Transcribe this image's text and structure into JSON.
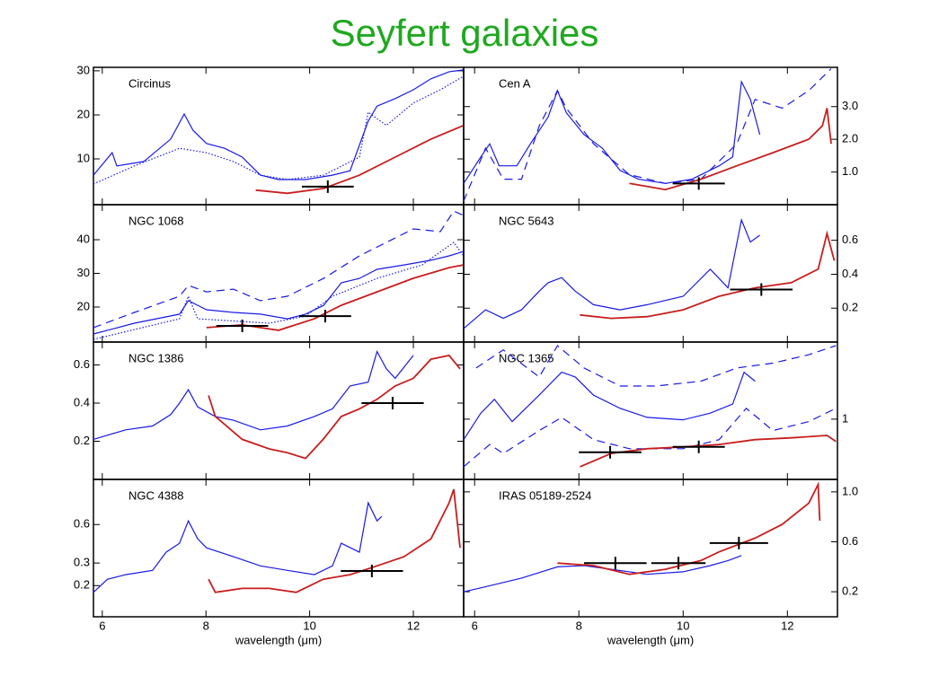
{
  "title": "Seyfert galaxies",
  "chart_data": [
    {
      "type": "line",
      "title": "Circinus",
      "xlim": [
        5.83,
        12.97
      ],
      "xticks": [
        6,
        8,
        10,
        12
      ],
      "ylim": [
        -0.4,
        30.8
      ],
      "yticks": [
        10,
        20,
        30
      ],
      "yaxis_side": "left",
      "series": [
        {
          "color": "#1a1ae6",
          "style": "solid",
          "x": [
            5.83,
            6.19,
            6.28,
            6.8,
            7.32,
            7.58,
            7.75,
            8.01,
            8.36,
            8.7,
            9.05,
            9.4,
            9.92,
            10.44,
            10.78,
            11.13,
            11.3,
            11.65,
            12.0,
            12.34,
            12.69,
            12.97
          ],
          "values": [
            6.3,
            11.4,
            8.4,
            9.4,
            14.5,
            20.2,
            16.5,
            13.5,
            12.4,
            10.4,
            6.3,
            5.3,
            5.3,
            6.3,
            7.3,
            18.6,
            22,
            23.7,
            25.7,
            28.2,
            29.8,
            30.2
          ]
        },
        {
          "color": "#1a1ae6",
          "style": "dotted",
          "x": [
            5.83,
            6.62,
            7.49,
            8.01,
            8.53,
            9.05,
            9.57,
            10.27,
            10.96,
            11.13,
            11.48,
            12.0,
            12.52,
            12.97
          ],
          "values": [
            4.3,
            8.4,
            12.4,
            11.4,
            9.4,
            6.3,
            5.3,
            6.3,
            10.4,
            20.6,
            17.6,
            22.7,
            25.7,
            28.8
          ]
        },
        {
          "color": "#c81e1e",
          "style": "solid",
          "x": [
            8.96,
            9.57,
            10.27,
            10.96,
            11.65,
            12.34,
            12.97
          ],
          "values": [
            2.9,
            2.2,
            3.3,
            6.3,
            10.4,
            14.5,
            17.6
          ]
        },
        {
          "color": "#000000",
          "style": "photometry",
          "x": [
            10.35
          ],
          "values": [
            3.7
          ],
          "xerr": [
            0.5
          ]
        }
      ]
    },
    {
      "type": "line",
      "title": "Cen A",
      "xlim": [
        5.79,
        12.96
      ],
      "xticks": [
        6,
        8,
        10,
        12
      ],
      "ylim": [
        0,
        4.2
      ],
      "yticks": [
        {
          "value": 1,
          "label": "1.0"
        },
        {
          "value": 2,
          "label": "2.0"
        },
        {
          "value": 3,
          "label": "3.0"
        }
      ],
      "yaxis_side": "right",
      "series": [
        {
          "color": "#1a1ae6",
          "style": "solid",
          "x": [
            5.79,
            6.12,
            6.29,
            6.47,
            6.81,
            7.07,
            7.41,
            7.59,
            7.76,
            8.1,
            8.45,
            8.79,
            9.14,
            9.66,
            10.17,
            10.69,
            10.95,
            11.12,
            11.29,
            11.47
          ],
          "values": [
            0.65,
            1.46,
            1.86,
            1.19,
            1.19,
            1.86,
            2.68,
            3.49,
            2.81,
            2.14,
            1.73,
            1.05,
            0.78,
            0.65,
            0.78,
            1.19,
            1.46,
            3.76,
            3.22,
            2.14
          ]
        },
        {
          "color": "#1a1ae6",
          "style": "dashed",
          "x": [
            5.79,
            6.21,
            6.55,
            6.9,
            7.24,
            7.59,
            7.76,
            8.28,
            8.97,
            9.66,
            10.34,
            11.03,
            11.38,
            11.9,
            12.41,
            12.84
          ],
          "values": [
            0.11,
            1.73,
            0.78,
            0.78,
            2.41,
            3.49,
            2.95,
            1.86,
            0.92,
            0.65,
            0.78,
            1.86,
            3.22,
            2.95,
            3.49,
            4.16
          ]
        },
        {
          "color": "#c81e1e",
          "style": "solid",
          "x": [
            8.97,
            9.66,
            10.34,
            11.03,
            11.72,
            12.41,
            12.67,
            12.76,
            12.84
          ],
          "values": [
            0.65,
            0.46,
            0.78,
            1.19,
            1.59,
            2.0,
            2.41,
            2.95,
            1.86
          ]
        },
        {
          "color": "#000000",
          "style": "photometry",
          "x": [
            10.3
          ],
          "values": [
            0.65
          ],
          "xerr": [
            0.5
          ]
        }
      ]
    },
    {
      "type": "line",
      "title": "NGC 1068",
      "xlim": [
        5.83,
        12.97
      ],
      "xticks": [
        6,
        8,
        10,
        12
      ],
      "ylim": [
        9.6,
        50.4
      ],
      "yticks": [
        20,
        30,
        40
      ],
      "yaxis_side": "left",
      "series": [
        {
          "color": "#1a1ae6",
          "style": "solid",
          "x": [
            5.83,
            6.62,
            7.49,
            7.66,
            8.01,
            8.53,
            9.05,
            9.57,
            9.92,
            10.27,
            10.61,
            10.96,
            11.3,
            11.82,
            12.34,
            12.69,
            12.97
          ],
          "values": [
            12,
            15.2,
            17.9,
            21.9,
            19.2,
            18.4,
            17.9,
            16.5,
            17.9,
            20.5,
            27.2,
            28.5,
            31.2,
            32.5,
            33.9,
            35.2,
            36.5
          ]
        },
        {
          "color": "#1a1ae6",
          "style": "dashed",
          "x": [
            5.83,
            6.62,
            7.49,
            7.66,
            8.01,
            8.53,
            9.05,
            9.57,
            10.27,
            10.96,
            11.48,
            12.0,
            12.52,
            12.78,
            12.97
          ],
          "values": [
            13.9,
            18.4,
            23.2,
            26.4,
            24.5,
            25.3,
            21.9,
            23.2,
            28.5,
            35.2,
            39.2,
            43.2,
            42.4,
            48.5,
            47.2
          ]
        },
        {
          "color": "#1a1ae6",
          "style": "dotted",
          "x": [
            5.83,
            7.49,
            7.66,
            7.84,
            9.22,
            9.92,
            10.44,
            11.3,
            12.17,
            12.78,
            12.97
          ],
          "values": [
            10.4,
            16.5,
            23.2,
            16.5,
            15.2,
            17.3,
            23.2,
            28.5,
            32.5,
            39.2,
            35.2
          ]
        },
        {
          "color": "#c81e1e",
          "style": "solid",
          "x": [
            8.01,
            8.7,
            9.4,
            10.09,
            10.61,
            11.3,
            11.99,
            12.69,
            12.97
          ],
          "values": [
            13.9,
            14.7,
            13.1,
            16.5,
            20.5,
            24.5,
            28.5,
            31.7,
            32.5
          ]
        },
        {
          "color": "#000000",
          "style": "photometry",
          "x": [
            8.7,
            10.3
          ],
          "values": [
            14.4,
            17.3
          ],
          "xerr": [
            0.5,
            0.5
          ]
        }
      ]
    },
    {
      "type": "line",
      "title": "NGC 5643",
      "xlim": [
        5.79,
        12.96
      ],
      "xticks": [
        6,
        8,
        10,
        12
      ],
      "ylim": [
        0,
        0.81
      ],
      "yticks": [
        0.2,
        0.4,
        0.6
      ],
      "yaxis_side": "right",
      "series": [
        {
          "color": "#1a1ae6",
          "style": "solid",
          "x": [
            5.79,
            6.21,
            6.55,
            6.9,
            7.24,
            7.41,
            7.67,
            7.93,
            8.28,
            8.79,
            9.31,
            10.0,
            10.52,
            10.86,
            11.12,
            11.29,
            11.47
          ],
          "values": [
            0.08,
            0.19,
            0.14,
            0.19,
            0.3,
            0.35,
            0.38,
            0.3,
            0.22,
            0.19,
            0.22,
            0.27,
            0.43,
            0.32,
            0.72,
            0.59,
            0.63
          ]
        },
        {
          "color": "#c81e1e",
          "style": "solid",
          "x": [
            8.02,
            8.62,
            9.31,
            10.0,
            10.69,
            11.38,
            12.07,
            12.59,
            12.76,
            12.9
          ],
          "values": [
            0.16,
            0.14,
            0.15,
            0.19,
            0.27,
            0.32,
            0.35,
            0.43,
            0.64,
            0.48
          ]
        },
        {
          "color": "#000000",
          "style": "photometry",
          "x": [
            11.5
          ],
          "values": [
            0.31
          ],
          "xerr": [
            0.6
          ]
        }
      ]
    },
    {
      "type": "line",
      "title": "NGC 1386",
      "xlim": [
        5.83,
        12.97
      ],
      "xticks": [
        6,
        8,
        10,
        12
      ],
      "ylim": [
        0,
        0.72
      ],
      "yticks": [
        0.2,
        0.4,
        0.6
      ],
      "yaxis_side": "left",
      "series": [
        {
          "color": "#1a1ae6",
          "style": "solid",
          "x": [
            5.83,
            6.45,
            6.97,
            7.32,
            7.49,
            7.66,
            7.84,
            8.18,
            8.53,
            9.05,
            9.57,
            10.09,
            10.44,
            10.78,
            11.13,
            11.3,
            11.48,
            11.65,
            12.0
          ],
          "values": [
            0.21,
            0.26,
            0.28,
            0.34,
            0.4,
            0.47,
            0.38,
            0.33,
            0.31,
            0.26,
            0.28,
            0.33,
            0.37,
            0.49,
            0.51,
            0.67,
            0.58,
            0.53,
            0.65
          ]
        },
        {
          "color": "#c81e1e",
          "style": "solid",
          "x": [
            8.05,
            8.18,
            8.7,
            9.22,
            9.57,
            9.92,
            10.26,
            10.61,
            10.96,
            11.3,
            11.65,
            12.0,
            12.34,
            12.69,
            12.9
          ],
          "values": [
            0.44,
            0.33,
            0.21,
            0.16,
            0.14,
            0.11,
            0.21,
            0.33,
            0.37,
            0.42,
            0.49,
            0.53,
            0.63,
            0.65,
            0.58
          ]
        },
        {
          "color": "#000000",
          "style": "photometry",
          "x": [
            11.6
          ],
          "values": [
            0.4
          ],
          "xerr": [
            0.6
          ]
        }
      ]
    },
    {
      "type": "line",
      "title": "NGC 1365",
      "xlim": [
        5.79,
        12.96
      ],
      "xticks": [
        6,
        8,
        10,
        12
      ],
      "ylim": [
        0,
        2.28
      ],
      "yticks": [
        1
      ],
      "yaxis_side": "right",
      "series": [
        {
          "color": "#1a1ae6",
          "style": "solid",
          "x": [
            5.79,
            6.12,
            6.38,
            6.72,
            7.24,
            7.67,
            7.93,
            8.28,
            8.79,
            9.31,
            10.0,
            10.52,
            10.95,
            11.17,
            11.38
          ],
          "values": [
            0.66,
            1.1,
            1.33,
            0.96,
            1.4,
            1.78,
            1.7,
            1.4,
            1.18,
            1.03,
            0.99,
            1.1,
            1.25,
            1.78,
            1.63
          ]
        },
        {
          "color": "#1a1ae6",
          "style": "dashed",
          "x": [
            6.03,
            6.55,
            7.24,
            7.59,
            8.1,
            8.79,
            9.48,
            10.34,
            11.03,
            11.72,
            12.41,
            12.93
          ],
          "values": [
            1.85,
            2.15,
            1.7,
            2.22,
            1.85,
            1.55,
            1.55,
            1.63,
            1.85,
            1.93,
            2.07,
            2.22
          ]
        },
        {
          "color": "#1a1ae6",
          "style": "dashed",
          "x": [
            5.79,
            6.29,
            6.55,
            7.24,
            7.67,
            8.28,
            8.97,
            10.0,
            10.69,
            11.21,
            11.72,
            12.41,
            12.93
          ],
          "values": [
            0.21,
            0.58,
            0.43,
            0.81,
            1.03,
            0.66,
            0.51,
            0.51,
            0.66,
            1.18,
            0.81,
            0.96,
            1.18
          ]
        },
        {
          "color": "#c81e1e",
          "style": "solid",
          "x": [
            8.02,
            8.62,
            9.31,
            10.0,
            10.69,
            11.38,
            12.07,
            12.76,
            12.93
          ],
          "values": [
            0.21,
            0.43,
            0.51,
            0.54,
            0.58,
            0.66,
            0.69,
            0.73,
            0.63
          ]
        },
        {
          "color": "#000000",
          "style": "photometry",
          "x": [
            8.6,
            10.3
          ],
          "values": [
            0.45,
            0.54
          ],
          "xerr": [
            0.6,
            0.5
          ]
        }
      ]
    },
    {
      "type": "line",
      "title": "NGC 4388",
      "xlim": [
        5.83,
        12.97
      ],
      "xticks": [
        6,
        8,
        10,
        12
      ],
      "xlabel": "wavelength (μm)",
      "ylim": [
        0.114,
        1.35
      ],
      "yscale": "log",
      "yticks": [
        0.2,
        0.3,
        0.6
      ],
      "yaxis_side": "left",
      "series": [
        {
          "color": "#1a1ae6",
          "style": "solid",
          "x": [
            5.83,
            6.1,
            6.45,
            6.97,
            7.23,
            7.49,
            7.66,
            7.84,
            8.01,
            8.53,
            9.05,
            9.57,
            10.09,
            10.44,
            10.61,
            10.96,
            11.13,
            11.3,
            11.39
          ],
          "values": [
            0.177,
            0.224,
            0.243,
            0.263,
            0.364,
            0.428,
            0.64,
            0.463,
            0.394,
            0.336,
            0.285,
            0.263,
            0.243,
            0.285,
            0.428,
            0.364,
            0.885,
            0.64,
            0.694
          ]
        },
        {
          "color": "#c81e1e",
          "style": "solid",
          "x": [
            8.05,
            8.18,
            8.7,
            9.22,
            9.74,
            10.26,
            10.78,
            11.3,
            11.82,
            12.34,
            12.69,
            12.78,
            12.9
          ],
          "values": [
            0.224,
            0.177,
            0.19,
            0.19,
            0.177,
            0.224,
            0.243,
            0.285,
            0.336,
            0.463,
            0.885,
            1.13,
            0.394
          ]
        },
        {
          "color": "#000000",
          "style": "photometry",
          "x": [
            11.2
          ],
          "values": [
            0.26
          ],
          "xerr": [
            0.6
          ]
        }
      ]
    },
    {
      "type": "line",
      "title": "IRAS 05189-2524",
      "xlim": [
        5.79,
        12.96
      ],
      "xticks": [
        6,
        8,
        10,
        12
      ],
      "xlabel": "wavelength (μm)",
      "ylim": [
        0,
        1.1
      ],
      "yticks": [
        0.2,
        0.6,
        {
          "value": 1,
          "label": "1.0"
        }
      ],
      "yaxis_side": "right",
      "series": [
        {
          "color": "#1a1ae6",
          "style": "solid",
          "x": [
            5.79,
            6.21,
            6.9,
            7.59,
            8.1,
            8.62,
            9.31,
            10.0,
            10.52,
            10.86,
            11.12
          ],
          "values": [
            0.2,
            0.24,
            0.31,
            0.4,
            0.41,
            0.38,
            0.34,
            0.36,
            0.41,
            0.45,
            0.49
          ]
        },
        {
          "color": "#c81e1e",
          "style": "solid",
          "x": [
            7.59,
            8.28,
            8.97,
            9.66,
            10.34,
            10.69,
            11.38,
            11.9,
            12.41,
            12.59,
            12.62
          ],
          "values": [
            0.43,
            0.41,
            0.34,
            0.38,
            0.45,
            0.52,
            0.63,
            0.74,
            0.91,
            1.06,
            0.77
          ]
        },
        {
          "color": "#000000",
          "style": "photometry",
          "x": [
            8.7,
            9.91,
            11.07
          ],
          "values": [
            0.43,
            0.43,
            0.59
          ],
          "xerr": [
            0.6,
            0.52,
            0.56
          ]
        }
      ]
    }
  ]
}
